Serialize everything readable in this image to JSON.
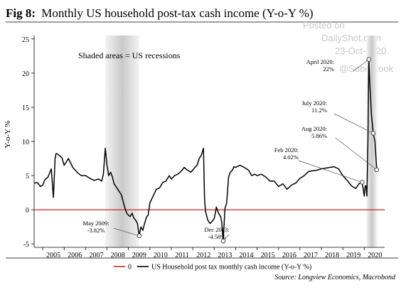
{
  "figure_label": "Fig 8:",
  "watermark": {
    "line1": "Posted on",
    "line2": "DailyShot.com",
    "line3": "23-Oct-2020",
    "line4": "@SoberLook"
  },
  "source": "Source: Longview Economics, Macrobond",
  "colors": {
    "series": "#000000",
    "zero_line": "#cc2222",
    "recession_shade": "#dcdcdc",
    "title": "#000000",
    "grid": "#cccccc"
  },
  "chart_data": {
    "type": "line",
    "title": "Monthly US household post-tax cash income (Y-o-Y %)",
    "xlabel": "",
    "ylabel": "Y-o-Y %",
    "xlim": [
      2004.6,
      2020.95
    ],
    "ylim": [
      -5.5,
      25.5
    ],
    "yticks": [
      -5,
      0,
      5,
      10,
      15,
      20,
      25
    ],
    "xticks": [
      "2005",
      "2006",
      "2007",
      "2008",
      "2009",
      "2010",
      "2011",
      "2012",
      "2013",
      "2014",
      "2015",
      "2016",
      "2017",
      "2018",
      "2019",
      "2020"
    ],
    "grid": false,
    "legend_position": "bottom",
    "recessions": [
      [
        2007.92,
        2009.5
      ],
      [
        2020.1,
        2020.6
      ]
    ],
    "recession_note": "Shaded areas = US recessions",
    "series": [
      {
        "name": "US Household post tax monthly cash income (Y-o-Y %)",
        "color": "#000000",
        "x": [
          2004.6,
          2004.75,
          2004.9,
          2005.0,
          2005.1,
          2005.25,
          2005.4,
          2005.5,
          2005.58,
          2005.62,
          2005.67,
          2005.75,
          2005.9,
          2006.0,
          2006.2,
          2006.4,
          2006.6,
          2006.8,
          2007.0,
          2007.2,
          2007.4,
          2007.6,
          2007.75,
          2007.83,
          2007.92,
          2008.0,
          2008.08,
          2008.17,
          2008.25,
          2008.33,
          2008.5,
          2008.67,
          2008.83,
          2008.92,
          2009.0,
          2009.08,
          2009.17,
          2009.25,
          2009.33,
          2009.42,
          2009.5,
          2009.58,
          2009.67,
          2009.75,
          2009.85,
          2009.92,
          2010.0,
          2010.15,
          2010.3,
          2010.45,
          2010.6,
          2010.75,
          2010.9,
          2011.0,
          2011.15,
          2011.3,
          2011.45,
          2011.6,
          2011.75,
          2011.9,
          2012.0,
          2012.1,
          2012.2,
          2012.3,
          2012.4,
          2012.5,
          2012.55,
          2012.6,
          2012.7,
          2012.8,
          2012.9,
          2013.0,
          2013.05,
          2013.1,
          2013.2,
          2013.3,
          2013.35,
          2013.42,
          2013.5,
          2013.58,
          2013.67,
          2013.75,
          2013.85,
          2013.92,
          2014.0,
          2014.2,
          2014.4,
          2014.6,
          2014.75,
          2014.9,
          2015.0,
          2015.2,
          2015.4,
          2015.6,
          2015.8,
          2016.0,
          2016.2,
          2016.4,
          2016.6,
          2016.8,
          2017.0,
          2017.2,
          2017.4,
          2017.6,
          2017.8,
          2018.0,
          2018.2,
          2018.4,
          2018.6,
          2018.8,
          2019.0,
          2019.2,
          2019.4,
          2019.6,
          2019.75,
          2019.9,
          2020.0,
          2020.04,
          2020.08,
          2020.12,
          2020.17,
          2020.21,
          2020.25,
          2020.33,
          2020.42,
          2020.5,
          2020.58,
          2020.67
        ],
        "y": [
          3.9,
          4.0,
          3.4,
          3.6,
          4.4,
          4.8,
          6.0,
          1.8,
          7.5,
          8.2,
          8.2,
          8.0,
          7.6,
          6.5,
          7.5,
          6.2,
          5.5,
          5.0,
          5.0,
          4.6,
          4.3,
          4.5,
          4.2,
          5.2,
          9.0,
          6.5,
          5.0,
          5.5,
          4.8,
          3.8,
          3.0,
          2.2,
          0.3,
          -0.5,
          -0.8,
          -1.0,
          -0.5,
          -1.2,
          -1.5,
          -2.0,
          -3.82,
          -2.5,
          -3.0,
          -2.0,
          -1.0,
          -0.8,
          1.0,
          2.0,
          3.0,
          3.2,
          4.0,
          4.2,
          5.0,
          4.5,
          5.0,
          5.2,
          5.6,
          6.2,
          5.8,
          5.5,
          5.8,
          6.2,
          6.5,
          7.5,
          8.0,
          9.0,
          1.5,
          -0.3,
          -1.5,
          -2.0,
          -1.7,
          -1.3,
          -0.5,
          0.4,
          -0.5,
          -1.0,
          -1.8,
          -4.58,
          0.2,
          1.0,
          4.8,
          5.5,
          5.8,
          6.3,
          6.2,
          6.5,
          6.2,
          5.8,
          5.0,
          5.2,
          5.0,
          5.2,
          4.8,
          4.2,
          4.2,
          3.4,
          3.8,
          3.0,
          3.6,
          3.9,
          4.6,
          5.0,
          5.6,
          5.7,
          5.8,
          6.0,
          6.1,
          6.2,
          6.3,
          6.0,
          5.0,
          4.3,
          3.5,
          3.1,
          3.8,
          4.02,
          2.0,
          3.5,
          3.5,
          2.0,
          10.0,
          22.0,
          19.0,
          14.0,
          11.2,
          10.0,
          5.86,
          5.86
        ]
      },
      {
        "name": "0",
        "color": "#cc2222",
        "x": [
          2004.6,
          2020.95
        ],
        "y": [
          0,
          0
        ]
      }
    ],
    "annotations": [
      {
        "lines": [
          "April 2020:",
          "22%"
        ],
        "x": 2020.21,
        "y": 22.0
      },
      {
        "lines": [
          "July 2020:",
          "11.2%"
        ],
        "x": 2020.42,
        "y": 11.2
      },
      {
        "lines": [
          "Aug 2020:",
          "5.86%"
        ],
        "x": 2020.58,
        "y": 5.86
      },
      {
        "lines": [
          "Feb 2020:",
          "4.02%"
        ],
        "x": 2019.9,
        "y": 4.02
      },
      {
        "lines": [
          "May 2009:",
          "-3.82%"
        ],
        "x": 2009.5,
        "y": -3.82
      },
      {
        "lines": [
          "Dec 2013:",
          "-4.58%"
        ],
        "x": 2013.42,
        "y": -4.58
      }
    ]
  }
}
